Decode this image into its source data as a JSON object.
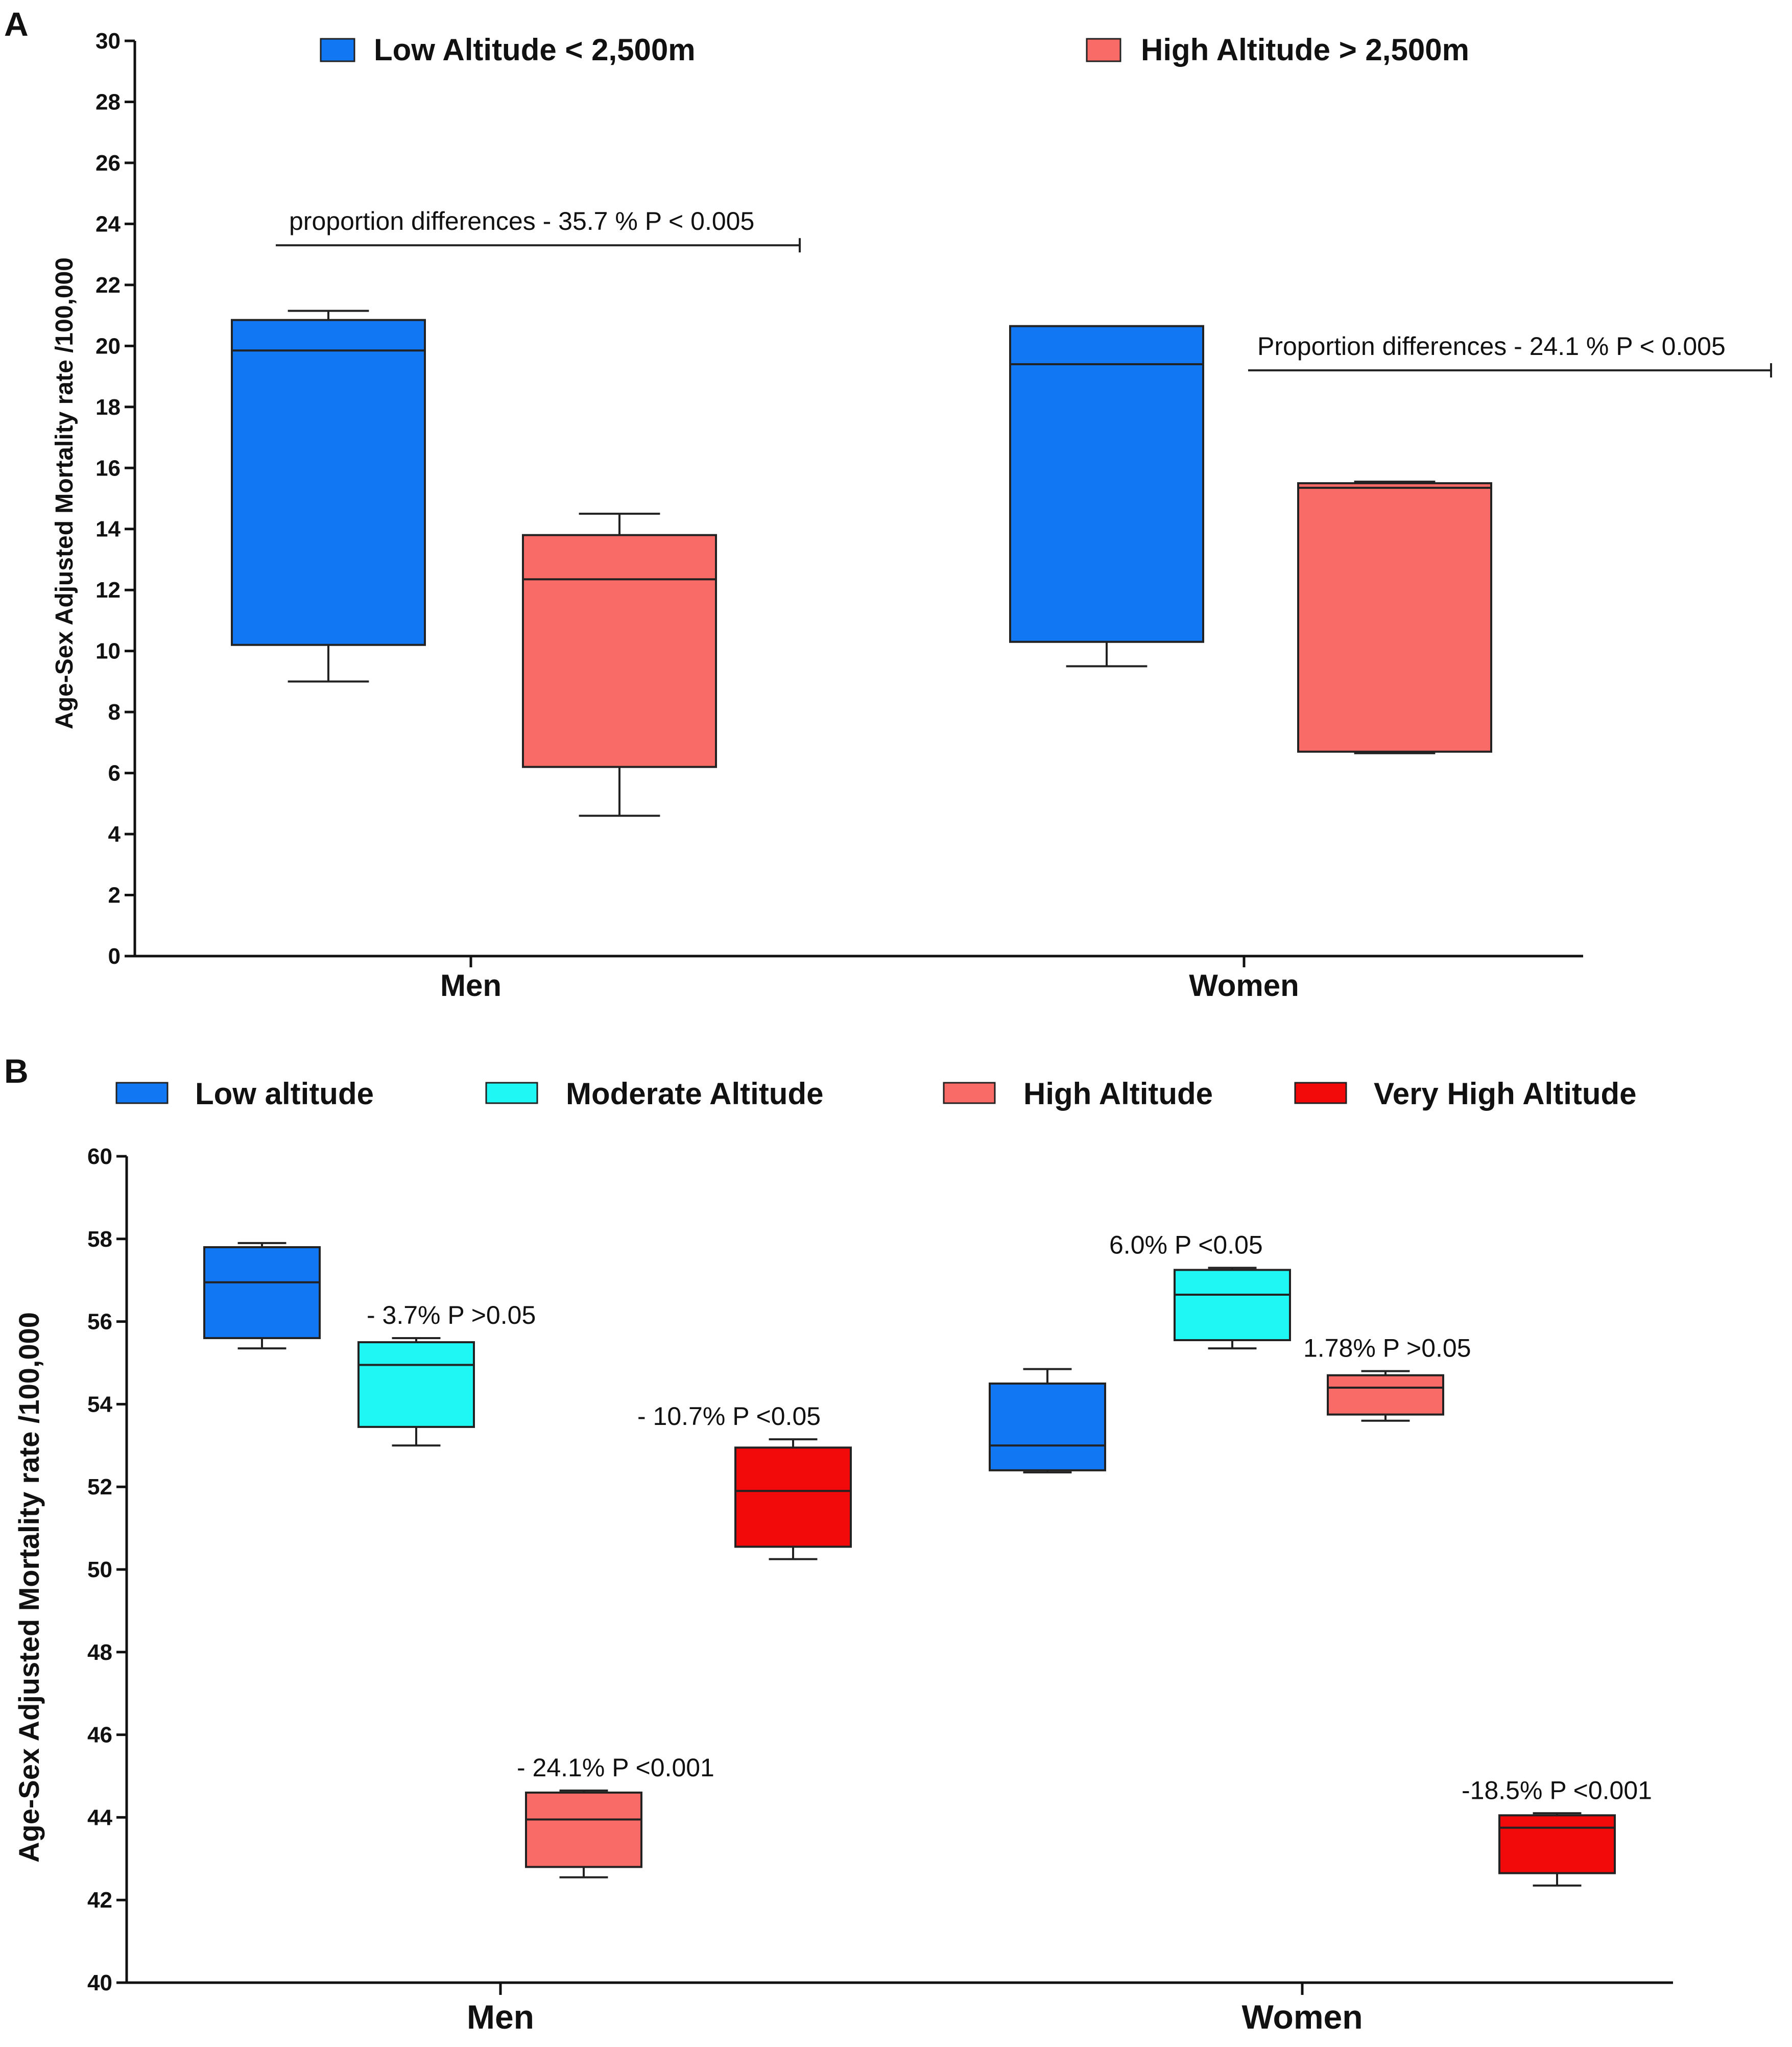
{
  "chart_data": [
    {
      "panel": "A",
      "type": "box",
      "ylabel": "Age-Sex Adjusted Mortality rate /100,000",
      "ylim": [
        0,
        30
      ],
      "yticks": [
        0,
        2,
        4,
        6,
        8,
        10,
        12,
        14,
        16,
        18,
        20,
        22,
        24,
        26,
        28,
        30
      ],
      "categories": [
        "Men",
        "Women"
      ],
      "legend": [
        {
          "label": "Low Altitude < 2,500m",
          "color": "#1177f2"
        },
        {
          "label": "High Altitude > 2,500m",
          "color": "#f86b67"
        }
      ],
      "boxes": [
        {
          "category": "Men",
          "series": 0,
          "min": 9.0,
          "q1": 10.2,
          "median": 19.85,
          "q3": 20.85,
          "max": 21.15
        },
        {
          "category": "Men",
          "series": 1,
          "min": 4.6,
          "q1": 6.2,
          "median": 12.35,
          "q3": 13.8,
          "max": 14.5
        },
        {
          "category": "Women",
          "series": 0,
          "min": 9.5,
          "q1": 10.3,
          "median": 19.4,
          "q3": 20.65,
          "max": 20.65
        },
        {
          "category": "Women",
          "series": 1,
          "min": 6.65,
          "q1": 6.7,
          "median": 15.35,
          "q3": 15.5,
          "max": 15.55
        }
      ],
      "annotations": [
        {
          "text": "proportion differences - 35.7 % P < 0.005",
          "y": 23.3
        },
        {
          "text": "Proportion differences - 24.1 % P < 0.005",
          "y": 19.2
        }
      ]
    },
    {
      "panel": "B",
      "type": "box",
      "ylabel": "Age-Sex Adjusted Mortality rate /100,000",
      "ylim": [
        40,
        60
      ],
      "yticks": [
        40,
        42,
        44,
        46,
        48,
        50,
        52,
        54,
        56,
        58,
        60
      ],
      "categories": [
        "Men",
        "Women"
      ],
      "legend": [
        {
          "label": "Low altitude",
          "color": "#1177f2"
        },
        {
          "label": "Moderate Altitude",
          "color": "#1ef7f3"
        },
        {
          "label": "High Altitude",
          "color": "#f86b67"
        },
        {
          "label": "Very High Altitude",
          "color": "#f20a0a"
        }
      ],
      "boxes": [
        {
          "category": "Men",
          "series": 0,
          "min": 55.35,
          "q1": 55.6,
          "median": 56.95,
          "q3": 57.8,
          "max": 57.9
        },
        {
          "category": "Men",
          "series": 1,
          "min": 53.0,
          "q1": 53.45,
          "median": 54.95,
          "q3": 55.5,
          "max": 55.6
        },
        {
          "category": "Men",
          "series": 2,
          "min": 42.55,
          "q1": 42.8,
          "median": 43.95,
          "q3": 44.6,
          "max": 44.65
        },
        {
          "category": "Men",
          "series": 3,
          "min": 50.25,
          "q1": 50.55,
          "median": 51.9,
          "q3": 52.95,
          "max": 53.15
        },
        {
          "category": "Women",
          "series": 0,
          "min": 52.35,
          "q1": 52.4,
          "median": 53.0,
          "q3": 54.5,
          "max": 54.85
        },
        {
          "category": "Women",
          "series": 1,
          "min": 55.35,
          "q1": 55.55,
          "median": 56.65,
          "q3": 57.25,
          "max": 57.3
        },
        {
          "category": "Women",
          "series": 2,
          "min": 53.6,
          "q1": 53.75,
          "median": 54.4,
          "q3": 54.7,
          "max": 54.8
        },
        {
          "category": "Women",
          "series": 3,
          "min": 42.35,
          "q1": 42.65,
          "median": 43.75,
          "q3": 44.05,
          "max": 44.1
        }
      ],
      "annotations": [
        {
          "text": "- 3.7% P >0.05",
          "box": 1
        },
        {
          "text": "- 24.1% P <0.001",
          "box": 2
        },
        {
          "text": "- 10.7% P <0.05",
          "box": 3
        },
        {
          "text": "6.0% P <0.05",
          "box": 5
        },
        {
          "text": "1.78% P >0.05",
          "box": 6
        },
        {
          "text": "-18.5% P <0.001",
          "box": 7
        }
      ]
    }
  ]
}
